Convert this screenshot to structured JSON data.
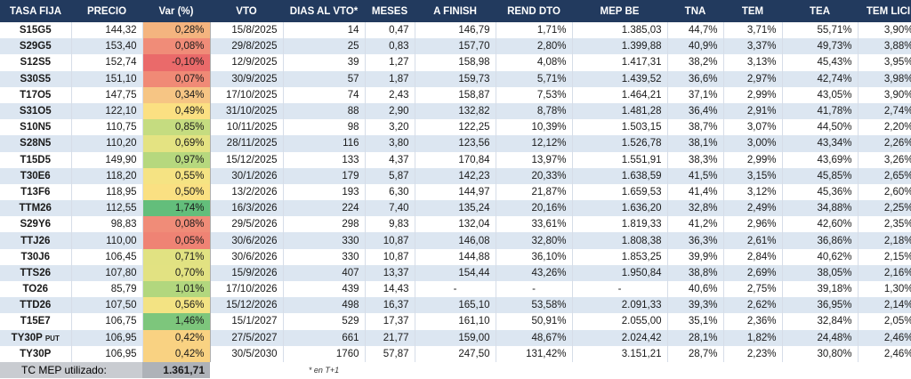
{
  "table": {
    "headers": [
      "TASA FIJA",
      "PRECIO",
      "Var (%)",
      "VTO",
      "DIAS AL VTO*",
      "MESES",
      "A FINISH",
      "REND DTO",
      "MEP BE",
      "TNA",
      "TEM",
      "TEA",
      "TEM LICI"
    ],
    "rows": [
      {
        "ticker": "S15G5",
        "suffix": "",
        "precio": "144,32",
        "var": "0,28%",
        "var_color": "#f4b47f",
        "vto": "15/8/2025",
        "dias": "14",
        "meses": "0,47",
        "finish": "146,79",
        "rend": "1,71%",
        "mep": "1.385,03",
        "tna": "44,7%",
        "tem": "3,71%",
        "tea": "55,71%",
        "lici": "3,90%"
      },
      {
        "ticker": "S29G5",
        "suffix": "",
        "precio": "153,40",
        "var": "0,08%",
        "var_color": "#f08c78",
        "vto": "29/8/2025",
        "dias": "25",
        "meses": "0,83",
        "finish": "157,70",
        "rend": "2,80%",
        "mep": "1.399,88",
        "tna": "40,9%",
        "tem": "3,37%",
        "tea": "49,73%",
        "lici": "3,88%"
      },
      {
        "ticker": "S12S5",
        "suffix": "",
        "precio": "152,74",
        "var": "-0,10%",
        "var_color": "#ea6a6a",
        "vto": "12/9/2025",
        "dias": "39",
        "meses": "1,27",
        "finish": "158,98",
        "rend": "4,08%",
        "mep": "1.417,31",
        "tna": "38,2%",
        "tem": "3,13%",
        "tea": "45,43%",
        "lici": "3,95%"
      },
      {
        "ticker": "S30S5",
        "suffix": "",
        "precio": "151,10",
        "var": "0,07%",
        "var_color": "#f08a76",
        "vto": "30/9/2025",
        "dias": "57",
        "meses": "1,87",
        "finish": "159,73",
        "rend": "5,71%",
        "mep": "1.439,52",
        "tna": "36,6%",
        "tem": "2,97%",
        "tea": "42,74%",
        "lici": "3,98%"
      },
      {
        "ticker": "T17O5",
        "suffix": "",
        "precio": "147,75",
        "var": "0,34%",
        "var_color": "#f6c584",
        "vto": "17/10/2025",
        "dias": "74",
        "meses": "2,43",
        "finish": "158,87",
        "rend": "7,53%",
        "mep": "1.464,21",
        "tna": "37,1%",
        "tem": "2,99%",
        "tea": "43,05%",
        "lici": "3,90%"
      },
      {
        "ticker": "S31O5",
        "suffix": "",
        "precio": "122,10",
        "var": "0,49%",
        "var_color": "#fbe082",
        "vto": "31/10/2025",
        "dias": "88",
        "meses": "2,90",
        "finish": "132,82",
        "rend": "8,78%",
        "mep": "1.481,28",
        "tna": "36,4%",
        "tem": "2,91%",
        "tea": "41,78%",
        "lici": "2,74%"
      },
      {
        "ticker": "S10N5",
        "suffix": "",
        "precio": "110,75",
        "var": "0,85%",
        "var_color": "#c5dc80",
        "vto": "10/11/2025",
        "dias": "98",
        "meses": "3,20",
        "finish": "122,25",
        "rend": "10,39%",
        "mep": "1.503,15",
        "tna": "38,7%",
        "tem": "3,07%",
        "tea": "44,50%",
        "lici": "2,20%"
      },
      {
        "ticker": "S28N5",
        "suffix": "",
        "precio": "110,20",
        "var": "0,69%",
        "var_color": "#e4e382",
        "vto": "28/11/2025",
        "dias": "116",
        "meses": "3,80",
        "finish": "123,56",
        "rend": "12,12%",
        "mep": "1.526,78",
        "tna": "38,1%",
        "tem": "3,00%",
        "tea": "43,34%",
        "lici": "2,26%"
      },
      {
        "ticker": "T15D5",
        "suffix": "",
        "precio": "149,90",
        "var": "0,97%",
        "var_color": "#b6d87e",
        "vto": "15/12/2025",
        "dias": "133",
        "meses": "4,37",
        "finish": "170,84",
        "rend": "13,97%",
        "mep": "1.551,91",
        "tna": "38,3%",
        "tem": "2,99%",
        "tea": "43,69%",
        "lici": "3,26%"
      },
      {
        "ticker": "T30E6",
        "suffix": "",
        "precio": "118,20",
        "var": "0,55%",
        "var_color": "#f5e383",
        "vto": "30/1/2026",
        "dias": "179",
        "meses": "5,87",
        "finish": "142,23",
        "rend": "20,33%",
        "mep": "1.638,59",
        "tna": "41,5%",
        "tem": "3,15%",
        "tea": "45,85%",
        "lici": "2,65%"
      },
      {
        "ticker": "T13F6",
        "suffix": "",
        "precio": "118,95",
        "var": "0,50%",
        "var_color": "#fae082",
        "vto": "13/2/2026",
        "dias": "193",
        "meses": "6,30",
        "finish": "144,97",
        "rend": "21,87%",
        "mep": "1.659,53",
        "tna": "41,4%",
        "tem": "3,12%",
        "tea": "45,36%",
        "lici": "2,60%"
      },
      {
        "ticker": "TTM26",
        "suffix": "",
        "precio": "112,55",
        "var": "1,74%",
        "var_color": "#63be7b",
        "vto": "16/3/2026",
        "dias": "224",
        "meses": "7,40",
        "finish": "135,24",
        "rend": "20,16%",
        "mep": "1.636,20",
        "tna": "32,8%",
        "tem": "2,49%",
        "tea": "34,88%",
        "lici": "2,25%"
      },
      {
        "ticker": "S29Y6",
        "suffix": "",
        "precio": "98,83",
        "var": "0,08%",
        "var_color": "#f08c78",
        "vto": "29/5/2026",
        "dias": "298",
        "meses": "9,83",
        "finish": "132,04",
        "rend": "33,61%",
        "mep": "1.819,33",
        "tna": "41,2%",
        "tem": "2,96%",
        "tea": "42,60%",
        "lici": "2,35%"
      },
      {
        "ticker": "TTJ26",
        "suffix": "",
        "precio": "110,00",
        "var": "0,05%",
        "var_color": "#ef8374",
        "vto": "30/6/2026",
        "dias": "330",
        "meses": "10,87",
        "finish": "146,08",
        "rend": "32,80%",
        "mep": "1.808,38",
        "tna": "36,3%",
        "tem": "2,61%",
        "tea": "36,86%",
        "lici": "2,18%"
      },
      {
        "ticker": "T30J6",
        "suffix": "",
        "precio": "106,45",
        "var": "0,71%",
        "var_color": "#e1e282",
        "vto": "30/6/2026",
        "dias": "330",
        "meses": "10,87",
        "finish": "144,88",
        "rend": "36,10%",
        "mep": "1.853,25",
        "tna": "39,9%",
        "tem": "2,84%",
        "tea": "40,62%",
        "lici": "2,15%"
      },
      {
        "ticker": "TTS26",
        "suffix": "",
        "precio": "107,80",
        "var": "0,70%",
        "var_color": "#e2e282",
        "vto": "15/9/2026",
        "dias": "407",
        "meses": "13,37",
        "finish": "154,44",
        "rend": "43,26%",
        "mep": "1.950,84",
        "tna": "38,8%",
        "tem": "2,69%",
        "tea": "38,05%",
        "lici": "2,16%"
      },
      {
        "ticker": "TO26",
        "suffix": "",
        "precio": "85,79",
        "var": "1,01%",
        "var_color": "#b2d77e",
        "vto": "17/10/2026",
        "dias": "439",
        "meses": "14,43",
        "finish": "-",
        "rend": "-",
        "mep": "-",
        "tna": "40,6%",
        "tem": "2,75%",
        "tea": "39,18%",
        "lici": "1,30%"
      },
      {
        "ticker": "TTD26",
        "suffix": "",
        "precio": "107,50",
        "var": "0,56%",
        "var_color": "#f3e383",
        "vto": "15/12/2026",
        "dias": "498",
        "meses": "16,37",
        "finish": "165,10",
        "rend": "53,58%",
        "mep": "2.091,33",
        "tna": "39,3%",
        "tem": "2,62%",
        "tea": "36,95%",
        "lici": "2,14%"
      },
      {
        "ticker": "T15E7",
        "suffix": "",
        "precio": "106,75",
        "var": "1,46%",
        "var_color": "#7dc67c",
        "vto": "15/1/2027",
        "dias": "529",
        "meses": "17,37",
        "finish": "161,10",
        "rend": "50,91%",
        "mep": "2.055,00",
        "tna": "35,1%",
        "tem": "2,36%",
        "tea": "32,84%",
        "lici": "2,05%"
      },
      {
        "ticker": "TY30P",
        "suffix": "PUT",
        "precio": "106,95",
        "var": "0,42%",
        "var_color": "#f9d282",
        "vto": "27/5/2027",
        "dias": "661",
        "meses": "21,77",
        "finish": "159,00",
        "rend": "48,67%",
        "mep": "2.024,42",
        "tna": "28,1%",
        "tem": "1,82%",
        "tea": "24,48%",
        "lici": "2,46%"
      },
      {
        "ticker": "TY30P",
        "suffix": "",
        "precio": "106,95",
        "var": "0,42%",
        "var_color": "#f9d282",
        "vto": "30/5/2030",
        "dias": "1760",
        "meses": "57,87",
        "finish": "247,50",
        "rend": "131,42%",
        "mep": "3.151,21",
        "tna": "28,7%",
        "tem": "2,23%",
        "tea": "30,80%",
        "lici": "2,46%"
      }
    ]
  },
  "footer": {
    "mep_label": "TC MEP utilizado:",
    "mep_value": "1.361,71",
    "note": "* en T+1"
  }
}
